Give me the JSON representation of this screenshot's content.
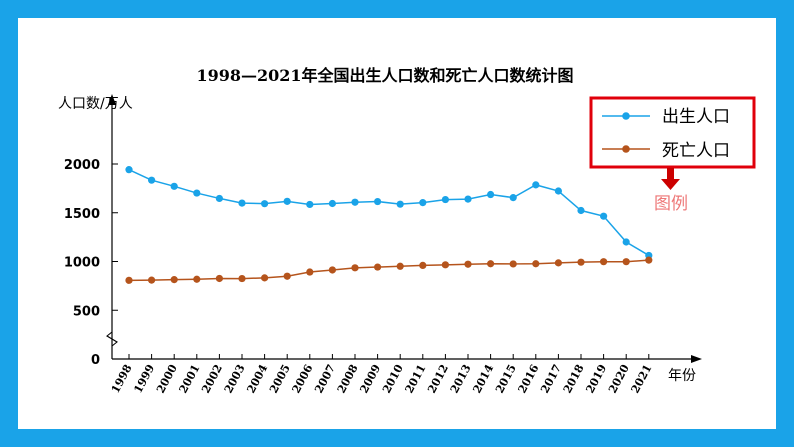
{
  "chart_data": {
    "type": "line",
    "title": "1998—2021年全国出生人口数和死亡人口数统计图",
    "ylabel": "人口数/万人",
    "xlabel": "年份",
    "ylim": [
      0,
      2000
    ],
    "yticks": [
      0,
      500,
      1000,
      1500,
      2000
    ],
    "categories": [
      "1998",
      "1999",
      "2000",
      "2001",
      "2002",
      "2003",
      "2004",
      "2005",
      "2006",
      "2007",
      "2008",
      "2009",
      "2010",
      "2011",
      "2012",
      "2013",
      "2014",
      "2015",
      "2016",
      "2017",
      "2018",
      "2019",
      "2020",
      "2021"
    ],
    "series": [
      {
        "name": "出生人口",
        "color": "#1aa3e8",
        "values": [
          1942,
          1834,
          1771,
          1702,
          1647,
          1599,
          1593,
          1617,
          1585,
          1595,
          1608,
          1615,
          1588,
          1604,
          1635,
          1640,
          1687,
          1655,
          1786,
          1723,
          1523,
          1465,
          1200,
          1062
        ]
      },
      {
        "name": "死亡人口",
        "color": "#b5541c",
        "values": [
          807,
          809,
          814,
          818,
          826,
          825,
          832,
          849,
          892,
          913,
          935,
          943,
          951,
          960,
          966,
          972,
          977,
          975,
          977,
          986,
          993,
          998,
          998,
          1014
        ]
      }
    ],
    "legend_position": "top-right",
    "annotation": "图例",
    "annotation_color": "#ee7777",
    "arrow_color": "#cc0000",
    "legend_border_color": "#e0000b",
    "grid": false
  }
}
